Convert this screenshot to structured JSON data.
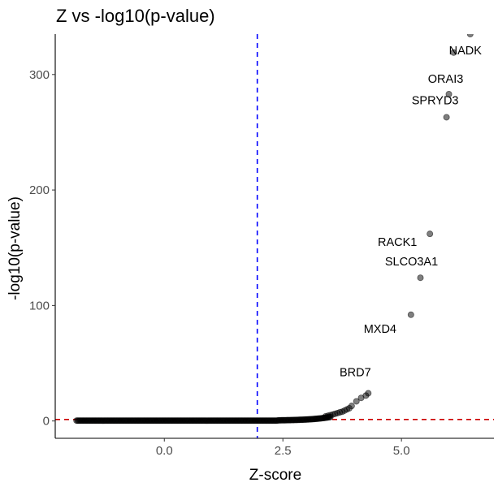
{
  "chart_data": {
    "type": "scatter",
    "title": "Z vs -log10(p-value)",
    "xlabel": "Z-score",
    "ylabel": "-log10(p-value)",
    "xlim": [
      -2.3,
      6.95
    ],
    "ylim": [
      -15,
      335
    ],
    "x_ticks": [
      {
        "value": 0,
        "label": "0.0"
      },
      {
        "value": 2.5,
        "label": "2.5"
      },
      {
        "value": 5,
        "label": "5.0"
      }
    ],
    "y_ticks": [
      {
        "value": 0,
        "label": "0"
      },
      {
        "value": 100,
        "label": "100"
      },
      {
        "value": 200,
        "label": "200"
      },
      {
        "value": 300,
        "label": "300"
      }
    ],
    "vline": {
      "x": 1.96,
      "color": "#0000ff",
      "style": "dashed"
    },
    "hline": {
      "y": 1.3,
      "color": "#cc0000",
      "style": "dashed"
    },
    "point_color": "#000000",
    "labeled_points": [
      {
        "label": "NADK",
        "x": 6.45,
        "y": 335
      },
      {
        "label": "ORAI3",
        "x": 6.0,
        "y": 283
      },
      {
        "label": "SPRYD3",
        "x": 5.95,
        "y": 263
      },
      {
        "label": "RACK1",
        "x": 5.6,
        "y": 162
      },
      {
        "label": "SLCO3A1",
        "x": 5.4,
        "y": 124
      },
      {
        "label": "MXD4",
        "x": 5.2,
        "y": 92
      },
      {
        "label": "BRD7",
        "x": 4.3,
        "y": 24
      }
    ],
    "extra_points": [
      {
        "x": 6.1,
        "y": 319
      },
      {
        "x": 4.25,
        "y": 22
      },
      {
        "x": 4.15,
        "y": 20
      },
      {
        "x": 4.05,
        "y": 17
      },
      {
        "x": 3.95,
        "y": 13
      },
      {
        "x": 3.9,
        "y": 11
      },
      {
        "x": 3.85,
        "y": 10
      },
      {
        "x": 3.8,
        "y": 9
      },
      {
        "x": 3.75,
        "y": 8
      },
      {
        "x": 3.7,
        "y": 7.5
      },
      {
        "x": 3.65,
        "y": 6.8
      },
      {
        "x": 3.6,
        "y": 6.2
      },
      {
        "x": 3.55,
        "y": 5.6
      },
      {
        "x": 3.5,
        "y": 5.0
      },
      {
        "x": 3.45,
        "y": 4.5
      },
      {
        "x": 3.4,
        "y": 4.0
      }
    ],
    "dense_series": {
      "x_start": -1.85,
      "x_end": 3.5,
      "count": 230
    }
  }
}
